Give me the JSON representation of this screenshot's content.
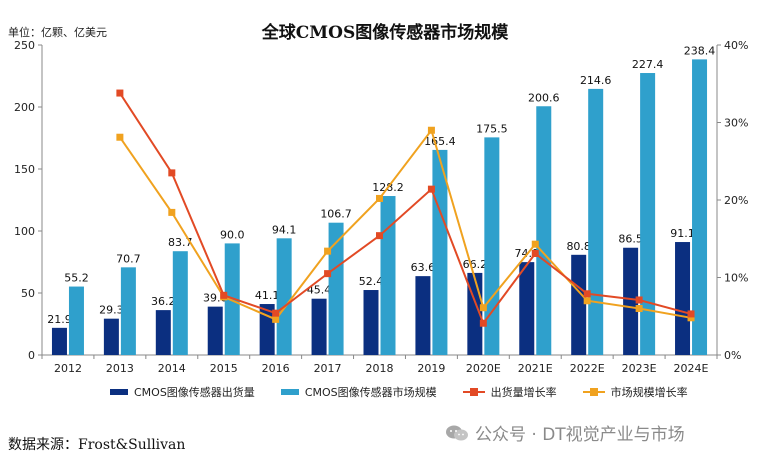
{
  "header": {
    "unit_label": "单位：亿颗、亿美元",
    "title": "全球CMOS图像传感器市场规模"
  },
  "footer": {
    "source": "数据来源：Frost&Sullivan",
    "watermark": "公众号 · DT视觉产业与市场"
  },
  "colors": {
    "shipments_bar": "#0b2f80",
    "market_bar": "#2fa0cc",
    "shipments_growth_line": "#e24a25",
    "market_growth_line": "#f0a21f",
    "axis": "#888888"
  },
  "chart_data": {
    "type": "bar",
    "categories": [
      "2012",
      "2013",
      "2014",
      "2015",
      "2016",
      "2017",
      "2018",
      "2019",
      "2020E",
      "2021E",
      "2022E",
      "2023E",
      "2024E"
    ],
    "series": [
      {
        "name": "CMOS图像传感器出货量",
        "type": "bar",
        "axis": "left",
        "values": [
          21.9,
          29.3,
          36.2,
          39.0,
          41.1,
          45.4,
          52.4,
          63.6,
          66.2,
          74.9,
          80.8,
          86.5,
          91.1
        ],
        "labels": [
          "21.9",
          "29.3",
          "36.2",
          "39.0",
          "41.1",
          "45.4",
          "52.4",
          "63.6",
          "66.2",
          "74.9",
          "80.8",
          "86.5",
          "91.1"
        ]
      },
      {
        "name": "CMOS图像传感器市场规模",
        "type": "bar",
        "axis": "left",
        "values": [
          55.2,
          70.7,
          83.7,
          90.0,
          94.1,
          106.7,
          128.2,
          165.4,
          175.5,
          200.6,
          214.6,
          227.4,
          238.4
        ],
        "labels": [
          "55.2",
          "70.7",
          "83.7",
          "90.0",
          "94.1",
          "106.7",
          "128.2",
          "165.4",
          "175.5",
          "200.6",
          "214.6",
          "227.4",
          "238.4"
        ]
      },
      {
        "name": "出货量增长率",
        "type": "line",
        "axis": "right",
        "values": [
          null,
          0.338,
          0.235,
          0.077,
          0.054,
          0.105,
          0.154,
          0.214,
          0.041,
          0.131,
          0.079,
          0.071,
          0.053
        ]
      },
      {
        "name": "市场规模增长率",
        "type": "line",
        "axis": "right",
        "values": [
          null,
          0.281,
          0.184,
          0.075,
          0.046,
          0.134,
          0.202,
          0.29,
          0.061,
          0.143,
          0.07,
          0.06,
          0.048
        ]
      }
    ],
    "ylim_left": [
      0,
      250
    ],
    "yticks_left": [
      "0",
      "50",
      "100",
      "150",
      "200",
      "250"
    ],
    "ylim_right": [
      0,
      0.4
    ],
    "yticks_right": [
      "0%",
      "10%",
      "20%",
      "30%",
      "40%"
    ],
    "legend_placement": "bottom",
    "grid": false
  }
}
